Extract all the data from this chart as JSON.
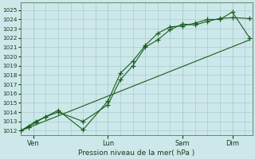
{
  "bg_color": "#cce8ea",
  "grid_color": "#aacccc",
  "line_color": "#1a5c1a",
  "xlabel": "Pression niveau de la mer( hPa )",
  "ylim": [
    1011.5,
    1025.8
  ],
  "yticks": [
    1012,
    1013,
    1014,
    1015,
    1016,
    1017,
    1018,
    1019,
    1020,
    1021,
    1022,
    1023,
    1024,
    1025
  ],
  "xtick_labels": [
    "Ven",
    "Lun",
    "Sam",
    "Dim"
  ],
  "xtick_positions": [
    0.5,
    3.5,
    6.5,
    8.5
  ],
  "xlim": [
    0,
    9.3
  ],
  "line1": {
    "x": [
      0,
      0.3,
      0.6,
      1.0,
      1.5,
      2.5,
      3.5,
      4.0,
      4.5,
      5.0,
      5.5,
      6.0,
      6.5,
      7.0,
      7.5,
      8.0,
      8.5,
      9.2
    ],
    "y": [
      1012.0,
      1012.5,
      1013.0,
      1013.5,
      1014.2,
      1012.1,
      1015.2,
      1018.2,
      1019.5,
      1021.2,
      1022.5,
      1023.2,
      1023.3,
      1023.6,
      1024.0,
      1024.0,
      1024.8,
      1022.0
    ]
  },
  "line2": {
    "x": [
      0,
      0.3,
      0.6,
      1.0,
      1.5,
      2.5,
      3.5,
      4.0,
      4.5,
      5.0,
      5.5,
      6.0,
      6.5,
      7.0,
      7.5,
      8.0,
      8.5,
      9.2
    ],
    "y": [
      1012.0,
      1012.4,
      1012.9,
      1013.5,
      1014.0,
      1013.0,
      1014.8,
      1017.5,
      1019.0,
      1021.0,
      1021.8,
      1022.9,
      1023.5,
      1023.4,
      1023.8,
      1024.1,
      1024.2,
      1024.1
    ]
  },
  "line3": {
    "x": [
      0,
      9.2
    ],
    "y": [
      1012.0,
      1021.8
    ]
  }
}
